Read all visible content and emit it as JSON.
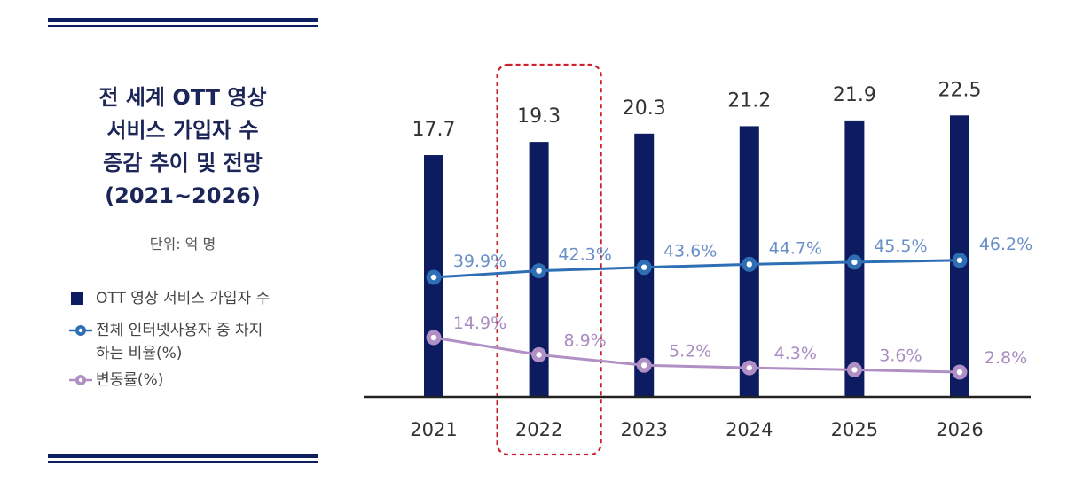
{
  "title_lines": [
    "전 세계 OTT 영상",
    "서비스 가입자 수",
    "증감 추이 및 전망",
    "(2021~2026)"
  ],
  "unit": "단위: 억 명",
  "legend": {
    "subscribers": "OTT 영상 서비스 가입자 수",
    "internet_share_line1": "전체 인터넷사용자 중 차지",
    "internet_share_line2": "하는 비율(%)",
    "change_rate": "변동률(%)"
  },
  "colors": {
    "bar": "#0d1b61",
    "share_line": "#2e6eb4",
    "share_label": "#6a8fc8",
    "change_line": "#b08fc5",
    "change_label": "#a98cc2",
    "highlight": "#cc1f2b",
    "rule": "#0e1f62"
  },
  "chart_data": {
    "type": "bar",
    "categories": [
      "2021",
      "2022",
      "2023",
      "2024",
      "2025",
      "2026"
    ],
    "highlight_category": "2022",
    "series": [
      {
        "name": "OTT 영상 서비스 가입자 수",
        "type": "bar",
        "values": [
          17.7,
          19.3,
          20.3,
          21.2,
          21.9,
          22.5
        ],
        "labels": [
          "17.7",
          "19.3",
          "20.3",
          "21.2",
          "21.9",
          "22.5"
        ]
      },
      {
        "name": "전체 인터넷사용자 중 차지하는 비율(%)",
        "type": "line",
        "values": [
          39.9,
          42.3,
          43.6,
          44.7,
          45.5,
          46.2
        ],
        "labels": [
          "39.9%",
          "42.3%",
          "43.6%",
          "44.7%",
          "45.5%",
          "46.2%"
        ]
      },
      {
        "name": "변동률(%)",
        "type": "line",
        "values": [
          14.9,
          8.9,
          5.2,
          4.3,
          3.6,
          2.8
        ],
        "labels": [
          "14.9%",
          "8.9%",
          "5.2%",
          "4.3%",
          "3.6%",
          "2.8%"
        ]
      }
    ],
    "ylim_bar": [
      0,
      25
    ],
    "grid": false
  }
}
